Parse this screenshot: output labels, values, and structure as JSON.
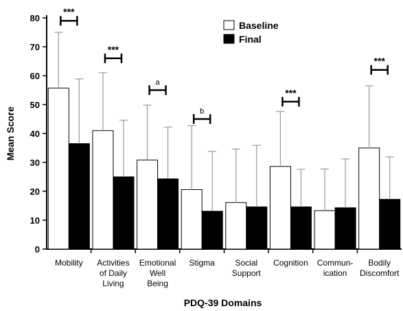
{
  "chart_data": {
    "type": "bar",
    "xlabel": "PDQ-39 Domains",
    "ylabel": "Mean Score",
    "ylim": [
      0,
      80
    ],
    "yticks": [
      0,
      10,
      20,
      30,
      40,
      50,
      60,
      70,
      80
    ],
    "grid": false,
    "legend_position": "top-center",
    "categories": [
      [
        "Mobility"
      ],
      [
        "Activities",
        "of Daily",
        "Living"
      ],
      [
        "Emotional",
        "Well",
        "Being"
      ],
      [
        "Stigma"
      ],
      [
        "Social",
        "Support"
      ],
      [
        "Cognition"
      ],
      [
        "Commun-",
        "ication"
      ],
      [
        "Bodily",
        "Discomfort"
      ]
    ],
    "series": [
      {
        "name": "Baseline",
        "color": "#ffffff",
        "values": [
          55.7,
          41.0,
          30.8,
          20.6,
          16.1,
          28.6,
          13.3,
          35.0
        ],
        "error_upper": [
          75.0,
          61.0,
          49.8,
          42.7,
          34.6,
          47.6,
          27.7,
          56.5
        ]
      },
      {
        "name": "Final",
        "color": "#000000",
        "values": [
          36.5,
          25.0,
          24.3,
          13.1,
          14.6,
          14.6,
          14.3,
          17.2
        ],
        "error_upper": [
          58.9,
          44.6,
          42.2,
          33.8,
          35.9,
          27.6,
          31.2,
          31.9
        ]
      }
    ],
    "annotations": [
      {
        "category_index": 0,
        "text": "***",
        "y": 79
      },
      {
        "category_index": 1,
        "text": "***",
        "y": 66
      },
      {
        "category_index": 2,
        "text": "a",
        "y": 55
      },
      {
        "category_index": 3,
        "text": "b",
        "y": 45
      },
      {
        "category_index": 5,
        "text": "***",
        "y": 51
      },
      {
        "category_index": 7,
        "text": "***",
        "y": 62
      }
    ]
  }
}
